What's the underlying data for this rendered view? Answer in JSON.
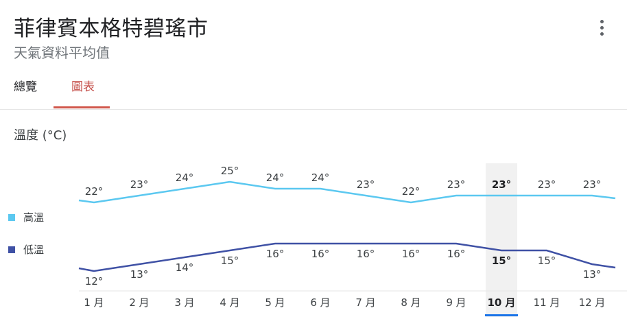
{
  "header": {
    "title": "菲律賓本格特碧瑤市",
    "subtitle": "天氣資料平均值",
    "more_icon": "more-vert-icon"
  },
  "tabs": [
    {
      "label": "總覽",
      "active": false
    },
    {
      "label": "圖表",
      "active": true
    }
  ],
  "section_label": "溫度 (°C)",
  "colors": {
    "high": "#5bc8f0",
    "low": "#3f51a5",
    "accent": "#c5504b",
    "selected_band": "#f1f1f1"
  },
  "legend": [
    {
      "label": "高溫",
      "color": "#5bc8f0"
    },
    {
      "label": "低溫",
      "color": "#3f51a5"
    }
  ],
  "chart_data": {
    "type": "line",
    "categories": [
      "1 月",
      "2 月",
      "3 月",
      "4 月",
      "5 月",
      "6 月",
      "7 月",
      "8 月",
      "9 月",
      "10 月",
      "11 月",
      "12 月"
    ],
    "series": [
      {
        "name": "高溫",
        "values": [
          22,
          23,
          24,
          25,
          24,
          24,
          23,
          22,
          23,
          23,
          23,
          23
        ],
        "labels": [
          "22°",
          "23°",
          "24°",
          "25°",
          "24°",
          "24°",
          "23°",
          "22°",
          "23°",
          "23°",
          "23°",
          "23°"
        ]
      },
      {
        "name": "低溫",
        "values": [
          12,
          13,
          14,
          15,
          16,
          16,
          16,
          16,
          16,
          15,
          15,
          13
        ],
        "labels": [
          "12°",
          "13°",
          "14°",
          "15°",
          "16°",
          "16°",
          "16°",
          "16°",
          "16°",
          "15°",
          "15°",
          "13°"
        ]
      }
    ],
    "selected_index": 9
  }
}
